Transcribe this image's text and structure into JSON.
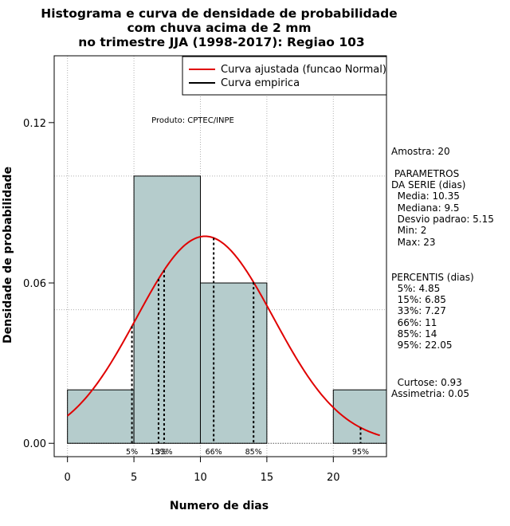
{
  "chart_data": {
    "type": "bar",
    "title": [
      "Histograma e curva de densidade de probabilidade",
      "com chuva acima de 2 mm",
      "no trimestre JJA (1998-2017): Regiao 103"
    ],
    "xlabel": "Numero de dias",
    "ylabel": "Densidade de probabilidade",
    "xlim": [
      -1,
      24
    ],
    "ylim": [
      -0.005,
      0.145
    ],
    "x_ticks": [
      0,
      5,
      10,
      15,
      20
    ],
    "x_tick_labels": [
      "0",
      "5",
      "10",
      "15",
      "20"
    ],
    "y_ticks": [
      0.0,
      0.06,
      0.12
    ],
    "y_tick_labels": [
      "0.00",
      "0.06",
      "0.12"
    ],
    "grid_x": [
      0,
      5,
      10,
      15,
      20
    ],
    "grid_y": [
      0.05,
      0.1
    ],
    "bins": [
      {
        "from": 0,
        "to": 5,
        "density": 0.02
      },
      {
        "from": 5,
        "to": 10,
        "density": 0.1
      },
      {
        "from": 10,
        "to": 15,
        "density": 0.06
      },
      {
        "from": 15,
        "to": 20,
        "density": 0.0
      },
      {
        "from": 20,
        "to": 25,
        "density": 0.02
      }
    ],
    "bar_color": "#b5cccc",
    "curve_color": "#e00000",
    "normal_fit": {
      "mean": 10.35,
      "sd": 5.15,
      "x_from": 0,
      "x_to": 23.5
    },
    "percentile_lines": [
      {
        "label": "5%",
        "x": 4.85
      },
      {
        "label": "15%",
        "x": 6.85
      },
      {
        "label": "33%",
        "x": 7.27
      },
      {
        "label": "66%",
        "x": 11
      },
      {
        "label": "85%",
        "x": 14
      },
      {
        "label": "95%",
        "x": 22.05
      }
    ],
    "legend": {
      "position": "top-right",
      "entries": [
        {
          "label": "Curva ajustada (funcao Normal)",
          "color": "#e00000"
        },
        {
          "label": "Curva empirica",
          "color": "#000000"
        }
      ]
    },
    "annotation": "Produto: CPTEC/INPE"
  },
  "stats": {
    "amostra": "Amostra: 20",
    "parametros_title": [
      " PARAMETROS",
      "DA SERIE (dias)"
    ],
    "parametros": [
      "  Media: 10.35",
      "  Mediana: 9.5",
      "  Desvio padrao: 5.15",
      "  Min: 2",
      "  Max: 23"
    ],
    "percentis_title": "PERCENTIS (dias)",
    "percentis": [
      "  5%: 4.85",
      "  15%: 6.85",
      "  33%: 7.27",
      "  66%: 11",
      "  85%: 14",
      "  95%: 22.05"
    ],
    "curtose": "  Curtose: 0.93",
    "assimetria": "Assimetria: 0.05"
  }
}
